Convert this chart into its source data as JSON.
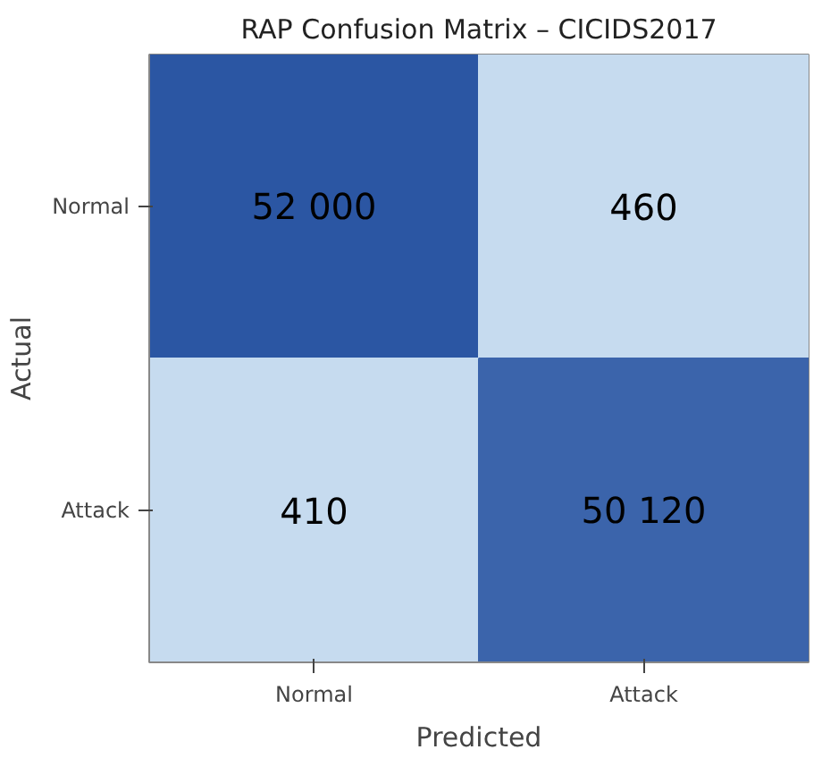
{
  "chart_data": {
    "type": "heatmap",
    "title": "RAP Confusion Matrix – CICIDS2017",
    "xlabel": "Predicted",
    "ylabel": "Actual",
    "categories": [
      "Normal",
      "Attack"
    ],
    "y_categories": [
      "Normal",
      "Attack"
    ],
    "cells": [
      [
        52000,
        460
      ],
      [
        410,
        50120
      ]
    ],
    "cell_labels": [
      [
        "52 000",
        "460"
      ],
      [
        "410",
        "50 120"
      ]
    ]
  }
}
